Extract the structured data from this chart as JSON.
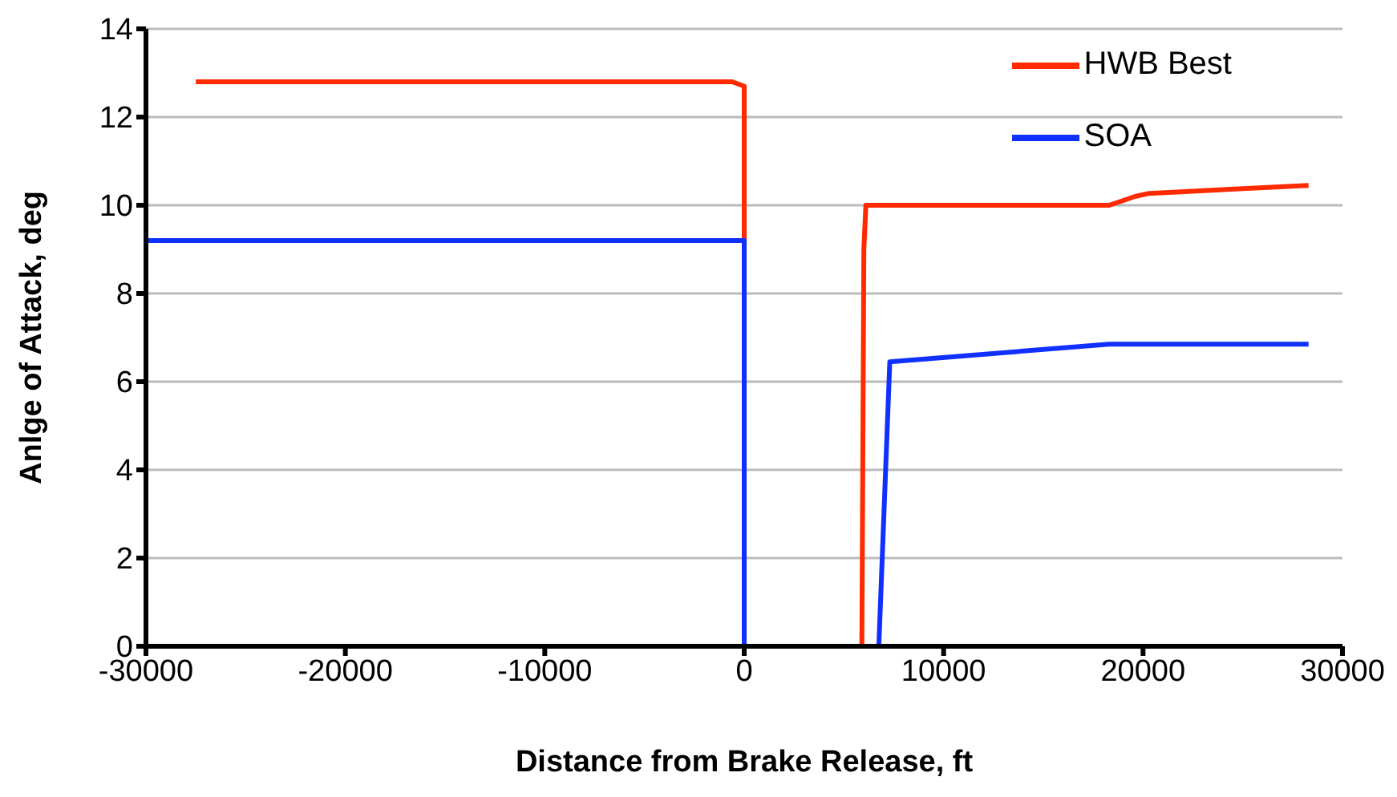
{
  "chart_data": {
    "type": "line",
    "xlabel": "Distance from Brake Release, ft",
    "ylabel": "Anlge of Attack, deg",
    "xlim": [
      -30000,
      30000
    ],
    "xticks": [
      -30000,
      -20000,
      -10000,
      0,
      10000,
      20000,
      30000
    ],
    "ylim": [
      0,
      14
    ],
    "yticks": [
      0,
      2,
      4,
      6,
      8,
      10,
      12,
      14
    ],
    "grid": "y",
    "legend": "top right",
    "marker": "none",
    "line_style": "solid",
    "series": [
      {
        "name": "HWB Best",
        "color": "#ff2a00",
        "x": [
          -27500,
          -600,
          0,
          0,
          5900,
          6000,
          6100,
          18300,
          19600,
          20300,
          28300
        ],
        "values": [
          12.8,
          12.8,
          12.7,
          0,
          0,
          9,
          10,
          10,
          10.2,
          10.27,
          10.45
        ]
      },
      {
        "name": "SOA",
        "color": "#1030ff",
        "x": [
          -30000,
          0,
          0,
          6750,
          7300,
          18300,
          28300
        ],
        "values": [
          9.2,
          9.2,
          0,
          0,
          6.45,
          6.85,
          6.85
        ]
      }
    ]
  }
}
